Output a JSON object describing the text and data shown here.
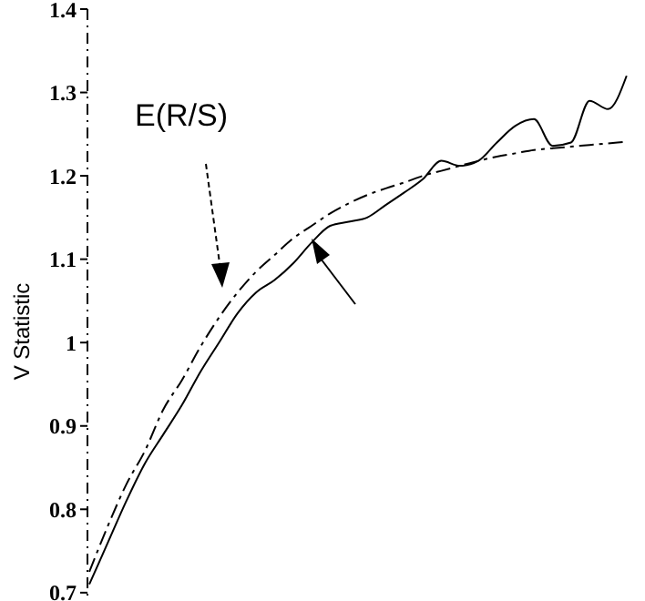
{
  "chart_data": {
    "type": "line",
    "ylabel": "V Statistic",
    "categories": [
      null,
      null,
      null,
      null,
      null,
      null,
      null,
      null,
      null,
      null,
      null,
      null,
      null,
      null,
      null,
      null,
      null,
      null,
      null,
      null,
      null,
      null,
      null,
      null,
      null,
      null,
      null,
      null,
      null,
      null
    ],
    "series": [
      {
        "name": "E(R/S)",
        "color": "#000000",
        "line_style": "dashed",
        "values": [
          0.725,
          0.78,
          0.83,
          0.87,
          0.92,
          0.955,
          0.995,
          1.03,
          1.06,
          1.085,
          1.105,
          1.125,
          1.14,
          1.155,
          1.167,
          1.177,
          1.185,
          1.192,
          1.2,
          1.206,
          1.212,
          1.218,
          1.223,
          1.227,
          1.231,
          1.233,
          1.235,
          1.237,
          1.239,
          1.241
        ]
      },
      {
        "color": "#000000",
        "line_style": "solid",
        "values": [
          0.71,
          0.76,
          0.81,
          0.855,
          0.89,
          0.925,
          0.965,
          1.0,
          1.035,
          1.06,
          1.075,
          1.095,
          1.12,
          1.14,
          1.145,
          1.15,
          1.165,
          1.18,
          1.196,
          1.218,
          1.212,
          1.218,
          1.24,
          1.26,
          1.268,
          1.236,
          1.24,
          1.29,
          1.28,
          1.32
        ]
      }
    ],
    "ylim": [
      0.69,
      1.4
    ],
    "yticks": [
      0.7,
      0.8,
      0.9,
      1,
      1.1,
      1.2,
      1.3,
      1.4
    ],
    "tick_labels": "y",
    "marker": "none"
  }
}
